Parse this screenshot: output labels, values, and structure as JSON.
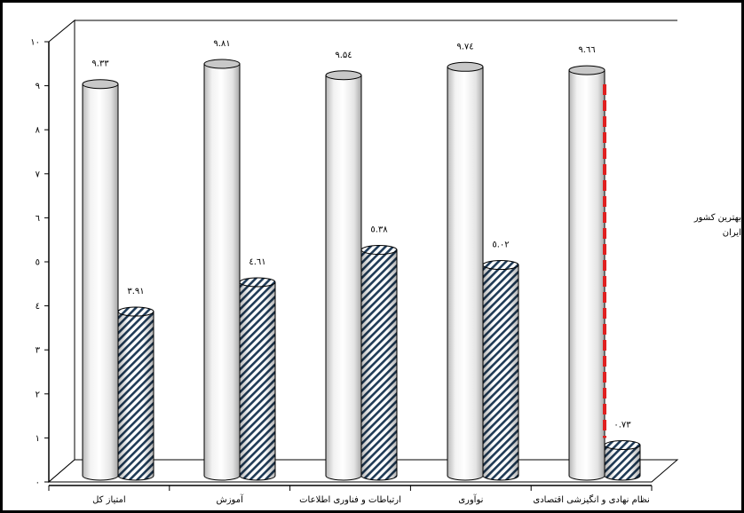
{
  "chart_data": {
    "type": "bar",
    "categories": [
      "امتیاز کل",
      "آموزش",
      "ارتباطات و فناوری اطلاعات",
      "نوآوری",
      "نظام نهادی و انگیزشی اقتصادی"
    ],
    "series": [
      {
        "name": "بهترین کشور",
        "values": [
          9.33,
          9.81,
          9.54,
          9.74,
          9.66
        ],
        "labels": [
          "۹.۳۳",
          "۹.۸۱",
          "۹.۵٤",
          "۹.۷٤",
          "۹.٦٦"
        ],
        "color": "#ffffff"
      },
      {
        "name": "ایران",
        "values": [
          3.91,
          4.61,
          5.38,
          5.02,
          0.73
        ],
        "labels": [
          "۳.۹۱",
          "٤.٦۱",
          "٥.۳۸",
          "٥.۰۲",
          "۰.۷۳"
        ],
        "color": "#1f3b57"
      }
    ],
    "y_ticks": [
      "۰",
      "۱",
      "۲",
      "۳",
      "٤",
      "٥",
      "٦",
      "۷",
      "۸",
      "۹",
      "۱۰"
    ],
    "ylim": [
      0,
      10
    ],
    "title": "",
    "xlabel": "",
    "ylabel": "",
    "grid": false,
    "legend_position": "right",
    "dashed_marker": {
      "category": "نظام نهادی و انگیزشی اقتصادی",
      "color": "#e02020"
    }
  }
}
